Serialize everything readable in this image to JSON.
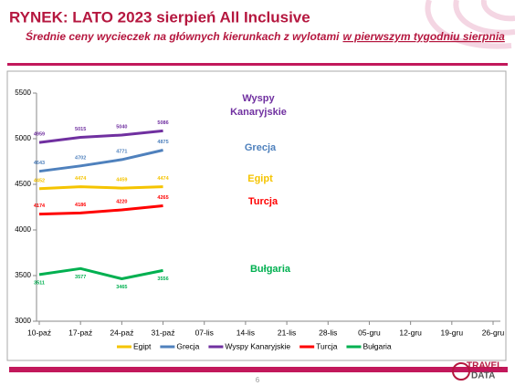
{
  "header": {
    "title": "RYNEK: LATO 2023 sierpień All Inclusive",
    "subtitle": [
      "Średnie ceny wycieczek na głównych kierunkach z wylotami",
      "w pierwszym tygodniu sierpnia"
    ]
  },
  "chart_data": {
    "type": "line",
    "categories": [
      "10-paź",
      "17-paź",
      "24-paź",
      "31-paź",
      "07-lis",
      "14-lis",
      "21-lis",
      "28-lis",
      "05-gru",
      "12-gru",
      "19-gru",
      "26-gru"
    ],
    "series": [
      {
        "name": "Egipt",
        "color": "#f5c400",
        "values": [
          4452,
          4474,
          4459,
          4474,
          null,
          null,
          null,
          null,
          null,
          null,
          null,
          null
        ]
      },
      {
        "name": "Grecja",
        "color": "#4f81bd",
        "values": [
          4643,
          4702,
          4771,
          4875,
          null,
          null,
          null,
          null,
          null,
          null,
          null,
          null
        ]
      },
      {
        "name": "Wyspy Kanaryjskie",
        "color": "#7030a0",
        "values": [
          4959,
          5015,
          5040,
          5086,
          null,
          null,
          null,
          null,
          null,
          null,
          null,
          null
        ]
      },
      {
        "name": "Turcja",
        "color": "#ff0000",
        "values": [
          4174,
          4186,
          4220,
          4265,
          null,
          null,
          null,
          null,
          null,
          null,
          null,
          null
        ]
      },
      {
        "name": "Bułgaria",
        "color": "#00b050",
        "values": [
          3511,
          3577,
          3465,
          3556,
          null,
          null,
          null,
          null,
          null,
          null,
          null,
          null
        ]
      }
    ],
    "ylim": [
      3000,
      5500
    ],
    "yticks": [
      3000,
      3500,
      4000,
      4500,
      5000,
      5500
    ],
    "grid": false,
    "legend": "bottom",
    "annotations": [
      {
        "text": "Wyspy Kanaryjskie",
        "color": "#7030a0"
      },
      {
        "text": "Grecja",
        "color": "#4f81bd"
      },
      {
        "text": "Egipt",
        "color": "#f5c400"
      },
      {
        "text": "Turcja",
        "color": "#ff0000"
      },
      {
        "text": "Bułgaria",
        "color": "#00b050"
      }
    ]
  },
  "footer": {
    "page": "6",
    "logo": [
      "TRAVEL",
      "DATA"
    ]
  }
}
